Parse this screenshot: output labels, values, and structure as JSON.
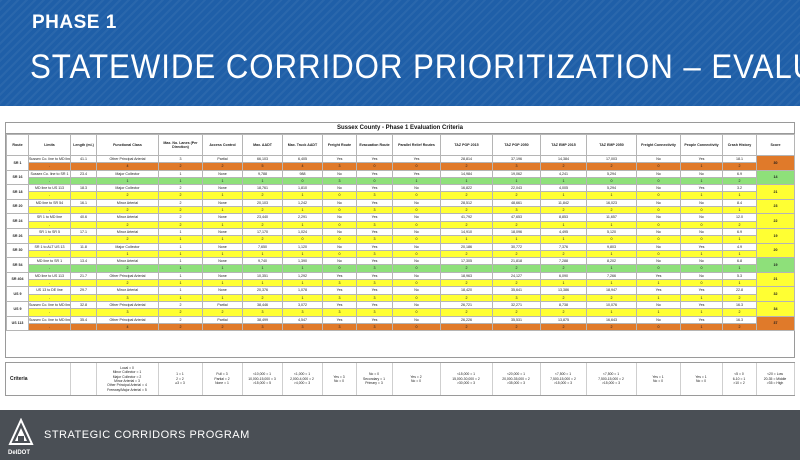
{
  "header": {
    "phase": "PHASE 1",
    "title": "STATEWIDE CORRIDOR PRIORITIZATION – EVALUATION MATRIX"
  },
  "matrix": {
    "title": "Sussex County - Phase 1 Evaluation Criteria",
    "columns": [
      "Route",
      "Limits",
      "Length (mi.)",
      "Functional Class",
      "Max. No. Lanes (Per Direction)",
      "Access Control",
      "Max. AADT",
      "Max. Truck AADT",
      "Freight Route",
      "Evacuation Route",
      "Parallel Relief Routes",
      "TAZ POP 2015",
      "TAZ POP 2050",
      "TAZ EMP 2015",
      "TAZ EMP 2050",
      "Freight Connectivity",
      "People Connectivity",
      "Crash History",
      "Score"
    ],
    "routes": [
      {
        "route": "SR 1",
        "score": "30",
        "score_color": "orange",
        "row_color": "o",
        "values": [
          "Sussex Co. line to MD line",
          "41.1",
          "Other Principal Arterial",
          "3",
          "Partial",
          "66,103",
          "6,405",
          "Yes",
          "Yes",
          "Yes",
          "28,814",
          "37,196",
          "14,384",
          "17,003",
          "No",
          "Yes",
          "18.1"
        ],
        "ratings": [
          "-",
          "",
          "4",
          "2",
          "2",
          "5",
          "4",
          "3",
          "0",
          "0",
          "2",
          "3",
          "2",
          "2",
          "0",
          "1",
          "2"
        ]
      },
      {
        "route": "SR 16",
        "score": "14",
        "score_color": "green",
        "row_color": "g",
        "values": [
          "Sussex Co. line to SR 1",
          "23.4",
          "Major Collector",
          "1",
          "None",
          "9,788",
          "988",
          "No",
          "Yes",
          "Yes",
          "14,984",
          "19,062",
          "4,241",
          "5,294",
          "No",
          "No",
          "6.9"
        ],
        "ratings": [
          "-",
          "",
          "1",
          "1",
          "1",
          "1",
          "0",
          "3",
          "0",
          "1",
          "1",
          "1",
          "1",
          "0",
          "0",
          "1",
          "2"
        ]
      },
      {
        "route": "SR 18",
        "score": "21",
        "score_color": "yellow",
        "row_color": "",
        "values": [
          "MD line to US 113",
          "18.3",
          "Major Collector",
          "2",
          "None",
          "18,761",
          "1,810",
          "No",
          "Yes",
          "No",
          "16,822",
          "22,043",
          "4,005",
          "5,294",
          "No",
          "Yes",
          "3.2"
        ],
        "ratings": [
          "-",
          "",
          "2",
          "2",
          "1",
          "2",
          "1",
          "0",
          "3",
          "0",
          "2",
          "2",
          "1",
          "1",
          "0",
          "1",
          "1"
        ]
      },
      {
        "route": "SR 20",
        "score": "23",
        "score_color": "yellow",
        "row_color": "",
        "values": [
          "MD line to SR 54",
          "16.1",
          "Minor Arterial",
          "2",
          "None",
          "20,103",
          "1,242",
          "No",
          "Yes",
          "No",
          "28,512",
          "48,661",
          "11,842",
          "16,023",
          "No",
          "No",
          "8.4"
        ],
        "ratings": [
          "-",
          "",
          "2",
          "2",
          "1",
          "2",
          "1",
          "0",
          "3",
          "0",
          "2",
          "3",
          "2",
          "2",
          "0",
          "0",
          "1"
        ]
      },
      {
        "route": "SR 24",
        "score": "22",
        "score_color": "yellow",
        "row_color": "",
        "values": [
          "SR 1 to MD line",
          "40.6",
          "Minor Arterial",
          "2",
          "None",
          "23,440",
          "2,291",
          "No",
          "Yes",
          "No",
          "41,792",
          "47,653",
          "8,853",
          "11,657",
          "No",
          "No",
          "12.0"
        ],
        "ratings": [
          "-",
          "",
          "2",
          "2",
          "1",
          "2",
          "1",
          "0",
          "3",
          "0",
          "2",
          "2",
          "1",
          "1",
          "0",
          "0",
          "2"
        ]
      },
      {
        "route": "SR 26",
        "score": "19",
        "score_color": "yellow",
        "row_color": "",
        "values": [
          "SR 1 to SR 5",
          "17.1",
          "Minor Arterial",
          "1",
          "None",
          "17,170",
          "1,024",
          "No",
          "Yes",
          "No",
          "14,910",
          "18,096",
          "4,495",
          "5,120",
          "No",
          "No",
          "6.9"
        ],
        "ratings": [
          "-",
          "",
          "2",
          "1",
          "1",
          "2",
          "0",
          "0",
          "3",
          "0",
          "1",
          "1",
          "1",
          "0",
          "0",
          "0",
          "1"
        ]
      },
      {
        "route": "SR 30",
        "score": "20",
        "score_color": "yellow",
        "row_color": "",
        "values": [
          "SR 1 to ALT US 13",
          "11.8",
          "Major Collector",
          "1",
          "None",
          "7,650",
          "1,120",
          "No",
          "Yes",
          "No",
          "20,186",
          "30,772",
          "7,376",
          "9,803",
          "No",
          "Yes",
          "4.9"
        ],
        "ratings": [
          "-",
          "",
          "1",
          "1",
          "1",
          "1",
          "1",
          "0",
          "3",
          "0",
          "2",
          "2",
          "2",
          "1",
          "0",
          "1",
          "1"
        ]
      },
      {
        "route": "SR 54",
        "score": "19",
        "score_color": "green",
        "row_color": "g",
        "values": [
          "MD line to SR 1",
          "13.4",
          "Minor Arterial",
          "1",
          "None",
          "9,740",
          "1,390",
          "No",
          "Yes",
          "No",
          "17,305",
          "21,818",
          "7,288",
          "8,202",
          "No",
          "No",
          "6.8"
        ],
        "ratings": [
          "-",
          "",
          "2",
          "1",
          "1",
          "1",
          "1",
          "0",
          "3",
          "0",
          "2",
          "2",
          "2",
          "1",
          "0",
          "0",
          "1"
        ]
      },
      {
        "route": "SR 404",
        "score": "21",
        "score_color": "yellow",
        "row_color": "",
        "values": [
          "MD line to US 113",
          "21.7",
          "Other Principal Arterial",
          "1",
          "None",
          "10,351",
          "1,292",
          "Yes",
          "Yes",
          "No",
          "18,963",
          "24,127",
          "6,090",
          "7,266",
          "Yes",
          "No",
          "5.3"
        ],
        "ratings": [
          "-",
          "",
          "2",
          "1",
          "1",
          "1",
          "1",
          "3",
          "3",
          "0",
          "2",
          "2",
          "1",
          "1",
          "1",
          "0",
          "1"
        ]
      },
      {
        "route": "US 9",
        "score": "32",
        "score_color": "yellow",
        "row_color": "",
        "values": [
          "US 13 to DE line",
          "29.7",
          "Minor Arterial",
          "1",
          "None",
          "20,376",
          "1,078",
          "Yes",
          "Yes",
          "No",
          "18,420",
          "35,641",
          "13,386",
          "18,947",
          "Yes",
          "Yes",
          "22.8"
        ],
        "ratings": [
          "-",
          "",
          "3",
          "1",
          "1",
          "2",
          "1",
          "3",
          "3",
          "0",
          "2",
          "3",
          "2",
          "2",
          "1",
          "1",
          "2"
        ]
      },
      {
        "route": "US 9",
        "score": "34",
        "score_color": "yellow",
        "row_color": "",
        "values": [
          "Sussex Co. line to MD line",
          "32.8",
          "Other Principal Arterial",
          "2",
          "Partial",
          "38,446",
          "3,072",
          "Yes",
          "Yes",
          "No",
          "26,721",
          "32,271",
          "8,738",
          "10,076",
          "No",
          "Yes",
          "16.3"
        ],
        "ratings": [
          "-",
          "",
          "3",
          "2",
          "2",
          "3",
          "3",
          "3",
          "3",
          "0",
          "2",
          "2",
          "2",
          "1",
          "1",
          "1",
          "2"
        ]
      },
      {
        "route": "US 113",
        "score": "37",
        "score_color": "orange",
        "row_color": "o",
        "values": [
          "Sussex Co. line to MD line",
          "35.4",
          "Other Principal Arterial",
          "2",
          "Partial",
          "38,499",
          "4,547",
          "Yes",
          "Yes",
          "No",
          "26,226",
          "35,531",
          "13,875",
          "16,643",
          "No",
          "Yes",
          "16.3"
        ],
        "ratings": [
          "-",
          "",
          "4",
          "2",
          "2",
          "3",
          "3",
          "3",
          "3",
          "0",
          "2",
          "2",
          "2",
          "2",
          "0",
          "1",
          "2"
        ]
      }
    ]
  },
  "criteria": {
    "label": "Criteria",
    "cells": [
      "",
      "",
      "Local = 0\nMinor Collector = 1\nMajor Collector = 2\nMinor Arterial = 3\nOther Principal Arterial = 4\nFreeway/Major Arterial = 5",
      "1 = 1\n2 = 2\n≥3 = 3",
      "Full = 3\nPartial = 2\nNone = 1",
      "<10,000 = 1\n10,000-15,000 = 3\n>15,000 = 5",
      "<1,000 = 1\n2,000-4,000 = 2\n>4,000 = 3",
      "Yes = 3\nNo = 0",
      "No = 0\nSecondary = 1\nPrimary = 3",
      "Yes = 2\nNo = 0",
      "<15,000 = 1\n15,000-30,000 = 2\n>30,000 = 3",
      "<20,000 = 1\n20,000-35,000 = 2\n>35,000 = 3",
      "<7,500 = 1\n7,500-15,000 = 2\n>15,000 = 3",
      "<7,500 = 1\n7,500-15,000 = 2\n>15,000 = 3",
      "Yes = 1\nNo = 0",
      "Yes = 1\nNo = 0",
      "<5 = 0\n6-10 = 1\n>10 = 2",
      "<20 = Low\n20-35 = Middle\n>35 = High"
    ]
  },
  "footer": {
    "program": "STRATEGIC CORRIDORS PROGRAM",
    "logo_text": "DelDOT"
  }
}
